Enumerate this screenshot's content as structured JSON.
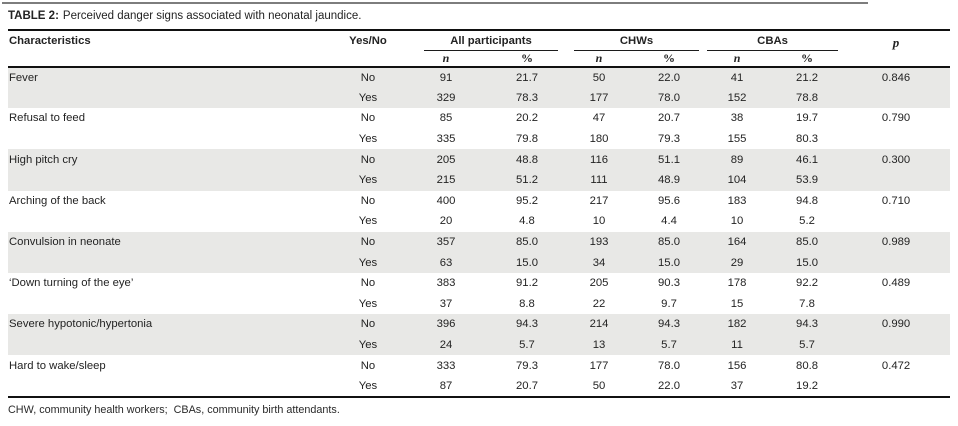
{
  "title": {
    "prefix": "TABLE 2:",
    "text": "Perceived danger signs associated with neonatal jaundice."
  },
  "header": {
    "characteristics": "Characteristics",
    "yes_no": "Yes/No",
    "groups": [
      {
        "label": "All participants"
      },
      {
        "label": "CHWs"
      },
      {
        "label": "CBAs"
      }
    ],
    "n_label": "n",
    "pct_label": "%",
    "p_label": "p"
  },
  "rows": [
    {
      "characteristic": "Fever",
      "shaded": true,
      "p": "0.846",
      "sub": [
        {
          "yn": "No",
          "all_n": "91",
          "all_pct": "21.7",
          "chw_n": "50",
          "chw_pct": "22.0",
          "cba_n": "41",
          "cba_pct": "21.2"
        },
        {
          "yn": "Yes",
          "all_n": "329",
          "all_pct": "78.3",
          "chw_n": "177",
          "chw_pct": "78.0",
          "cba_n": "152",
          "cba_pct": "78.8"
        }
      ]
    },
    {
      "characteristic": "Refusal to feed",
      "shaded": false,
      "p": "0.790",
      "sub": [
        {
          "yn": "No",
          "all_n": "85",
          "all_pct": "20.2",
          "chw_n": "47",
          "chw_pct": "20.7",
          "cba_n": "38",
          "cba_pct": "19.7"
        },
        {
          "yn": "Yes",
          "all_n": "335",
          "all_pct": "79.8",
          "chw_n": "180",
          "chw_pct": "79.3",
          "cba_n": "155",
          "cba_pct": "80.3"
        }
      ]
    },
    {
      "characteristic": "High pitch cry",
      "shaded": true,
      "p": "0.300",
      "sub": [
        {
          "yn": "No",
          "all_n": "205",
          "all_pct": "48.8",
          "chw_n": "116",
          "chw_pct": "51.1",
          "cba_n": "89",
          "cba_pct": "46.1"
        },
        {
          "yn": "Yes",
          "all_n": "215",
          "all_pct": "51.2",
          "chw_n": "111",
          "chw_pct": "48.9",
          "cba_n": "104",
          "cba_pct": "53.9"
        }
      ]
    },
    {
      "characteristic": "Arching of the back",
      "shaded": false,
      "p": "0.710",
      "sub": [
        {
          "yn": "No",
          "all_n": "400",
          "all_pct": "95.2",
          "chw_n": "217",
          "chw_pct": "95.6",
          "cba_n": "183",
          "cba_pct": "94.8"
        },
        {
          "yn": "Yes",
          "all_n": "20",
          "all_pct": "4.8",
          "chw_n": "10",
          "chw_pct": "4.4",
          "cba_n": "10",
          "cba_pct": "5.2"
        }
      ]
    },
    {
      "characteristic": "Convulsion in neonate",
      "shaded": true,
      "p": "0.989",
      "sub": [
        {
          "yn": "No",
          "all_n": "357",
          "all_pct": "85.0",
          "chw_n": "193",
          "chw_pct": "85.0",
          "cba_n": "164",
          "cba_pct": "85.0"
        },
        {
          "yn": "Yes",
          "all_n": "63",
          "all_pct": "15.0",
          "chw_n": "34",
          "chw_pct": "15.0",
          "cba_n": "29",
          "cba_pct": "15.0"
        }
      ]
    },
    {
      "characteristic": "‘Down turning of the eye’",
      "shaded": false,
      "p": "0.489",
      "sub": [
        {
          "yn": "No",
          "all_n": "383",
          "all_pct": "91.2",
          "chw_n": "205",
          "chw_pct": "90.3",
          "cba_n": "178",
          "cba_pct": "92.2"
        },
        {
          "yn": "Yes",
          "all_n": "37",
          "all_pct": "8.8",
          "chw_n": "22",
          "chw_pct": "9.7",
          "cba_n": "15",
          "cba_pct": "7.8"
        }
      ]
    },
    {
      "characteristic": "Severe hypotonic/hypertonia",
      "shaded": true,
      "p": "0.990",
      "sub": [
        {
          "yn": "No",
          "all_n": "396",
          "all_pct": "94.3",
          "chw_n": "214",
          "chw_pct": "94.3",
          "cba_n": "182",
          "cba_pct": "94.3"
        },
        {
          "yn": "Yes",
          "all_n": "24",
          "all_pct": "5.7",
          "chw_n": "13",
          "chw_pct": "5.7",
          "cba_n": "11",
          "cba_pct": "5.7"
        }
      ]
    },
    {
      "characteristic": "Hard to wake/sleep",
      "shaded": false,
      "p": "0.472",
      "sub": [
        {
          "yn": "No",
          "all_n": "333",
          "all_pct": "79.3",
          "chw_n": "177",
          "chw_pct": "78.0",
          "cba_n": "156",
          "cba_pct": "80.8"
        },
        {
          "yn": "Yes",
          "all_n": "87",
          "all_pct": "20.7",
          "chw_n": "50",
          "chw_pct": "22.0",
          "cba_n": "37",
          "cba_pct": "19.2"
        }
      ]
    }
  ],
  "footnote": "CHW, community health workers;  CBAs, community birth attendants.",
  "colors": {
    "shaded_row": "#e8e8e6",
    "rule": "#111111",
    "text": "#232323"
  }
}
